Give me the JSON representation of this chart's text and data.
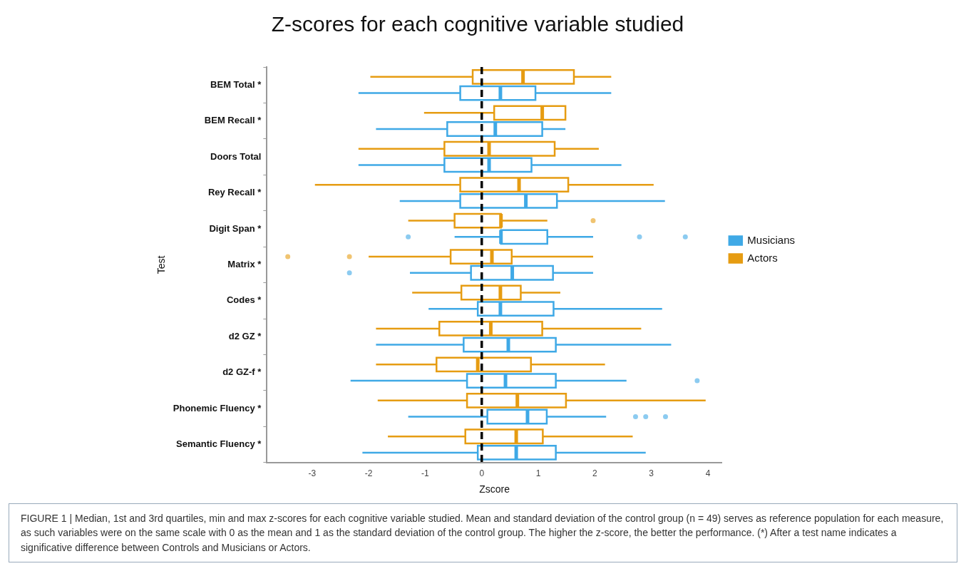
{
  "chart_data": {
    "type": "box",
    "orientation": "horizontal",
    "title": "Z-scores for each cognitive variable studied",
    "xlabel": "Zscore",
    "ylabel": "Test",
    "categories": [
      "BEM Total *",
      "BEM Recall *",
      "Doors Total",
      "Rey Recall *",
      "Digit Span *",
      "Matrix *",
      "Codes *",
      "d2 GZ *",
      "d2 GZ-f *",
      "Phonemic Fluency *",
      "Semantic Fluency *"
    ],
    "xlim": [
      -3.8,
      4.25
    ],
    "xticks": [
      -3,
      -2,
      -1,
      0,
      1,
      2,
      3,
      4
    ],
    "legend": "right",
    "series": [
      {
        "name": "Musicians",
        "color": "#3fa9e6",
        "boxes": [
          {
            "low": -2.18,
            "q1": -0.38,
            "median": 0.33,
            "q3": 0.95,
            "high": 2.29
          },
          {
            "low": -1.87,
            "q1": -0.61,
            "median": 0.24,
            "q3": 1.07,
            "high": 1.48
          },
          {
            "low": -2.18,
            "q1": -0.66,
            "median": 0.13,
            "q3": 0.88,
            "high": 2.47
          },
          {
            "low": -1.45,
            "q1": -0.38,
            "median": 0.78,
            "q3": 1.33,
            "high": 3.24
          },
          {
            "low": -0.48,
            "q1": 0.34,
            "median": 0.34,
            "q3": 1.16,
            "high": 1.97,
            "outliers": [
              -1.3,
              2.79,
              3.6
            ]
          },
          {
            "low": -1.27,
            "q1": -0.19,
            "median": 0.54,
            "q3": 1.26,
            "high": 1.97,
            "outliers": [
              -2.34
            ]
          },
          {
            "low": -0.94,
            "q1": -0.07,
            "median": 0.33,
            "q3": 1.27,
            "high": 3.19
          },
          {
            "low": -1.87,
            "q1": -0.32,
            "median": 0.47,
            "q3": 1.31,
            "high": 3.35
          },
          {
            "low": -2.32,
            "q1": -0.26,
            "median": 0.42,
            "q3": 1.31,
            "high": 2.56,
            "outliers": [
              3.81
            ]
          },
          {
            "low": -1.3,
            "q1": 0.1,
            "median": 0.81,
            "q3": 1.15,
            "high": 2.2,
            "outliers": [
              2.72,
              2.9,
              3.25
            ]
          },
          {
            "low": -2.11,
            "q1": -0.07,
            "median": 0.61,
            "q3": 1.31,
            "high": 2.9
          }
        ]
      },
      {
        "name": "Actors",
        "color": "#e69c12",
        "boxes": [
          {
            "low": -1.97,
            "q1": -0.16,
            "median": 0.73,
            "q3": 1.63,
            "high": 2.29
          },
          {
            "low": -1.02,
            "q1": 0.22,
            "median": 1.07,
            "q3": 1.48,
            "high": 1.48
          },
          {
            "low": -2.18,
            "q1": -0.66,
            "median": 0.13,
            "q3": 1.29,
            "high": 2.07
          },
          {
            "low": -2.95,
            "q1": -0.38,
            "median": 0.66,
            "q3": 1.53,
            "high": 3.04
          },
          {
            "low": -1.3,
            "q1": -0.48,
            "median": 0.34,
            "q3": 0.34,
            "high": 1.16,
            "outliers": [
              1.97
            ]
          },
          {
            "low": -2.0,
            "q1": -0.55,
            "median": 0.18,
            "q3": 0.53,
            "high": 1.97,
            "outliers": [
              -3.43,
              -2.34
            ]
          },
          {
            "low": -1.23,
            "q1": -0.36,
            "median": 0.33,
            "q3": 0.69,
            "high": 1.39
          },
          {
            "low": -1.87,
            "q1": -0.75,
            "median": 0.16,
            "q3": 1.07,
            "high": 2.82
          },
          {
            "low": -1.87,
            "q1": -0.8,
            "median": -0.07,
            "q3": 0.87,
            "high": 2.18
          },
          {
            "low": -1.84,
            "q1": -0.26,
            "median": 0.63,
            "q3": 1.49,
            "high": 3.96
          },
          {
            "low": -1.66,
            "q1": -0.29,
            "median": 0.61,
            "q3": 1.08,
            "high": 2.67
          }
        ]
      }
    ],
    "ref_lines": [
      {
        "axis": "x",
        "value": 0,
        "color": "#000000",
        "line_style": "dashed"
      }
    ],
    "annotations": [
      "FIGURE 1 | Median, 1st and 3rd quartiles, min and max z-scores for each cognitive variable studied. Mean and standard deviation of the control group (n = 49) serves as reference population for each measure, as such variables were on the same scale with 0 as the mean and 1 as the standard deviation of the control group. The higher the z-score, the better the performance. (*) After a test name indicates a significative difference between Controls and Musicians or Actors."
    ]
  }
}
